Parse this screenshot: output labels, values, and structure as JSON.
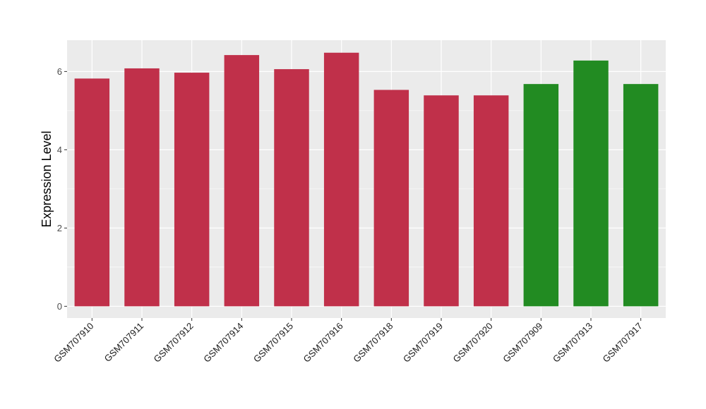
{
  "chart_data": {
    "type": "bar",
    "title": "",
    "xlabel": "",
    "ylabel": "Expression Level",
    "ylim": [
      -0.3,
      6.8
    ],
    "yticks": [
      0,
      2,
      4,
      6
    ],
    "grid": true,
    "legend": "none",
    "categories": [
      "GSM707910",
      "GSM707911",
      "GSM707912",
      "GSM707914",
      "GSM707915",
      "GSM707916",
      "GSM707918",
      "GSM707919",
      "GSM707920",
      "GSM707909",
      "GSM707913",
      "GSM707917"
    ],
    "values": [
      5.82,
      6.08,
      5.97,
      6.42,
      6.06,
      6.48,
      5.53,
      5.39,
      5.39,
      5.68,
      6.28,
      5.68
    ],
    "colors": [
      "#c0304a",
      "#c0304a",
      "#c0304a",
      "#c0304a",
      "#c0304a",
      "#c0304a",
      "#c0304a",
      "#c0304a",
      "#c0304a",
      "#228b22",
      "#228b22",
      "#228b22"
    ],
    "panel_background": "#ebebeb",
    "grid_color": "#ffffff"
  }
}
